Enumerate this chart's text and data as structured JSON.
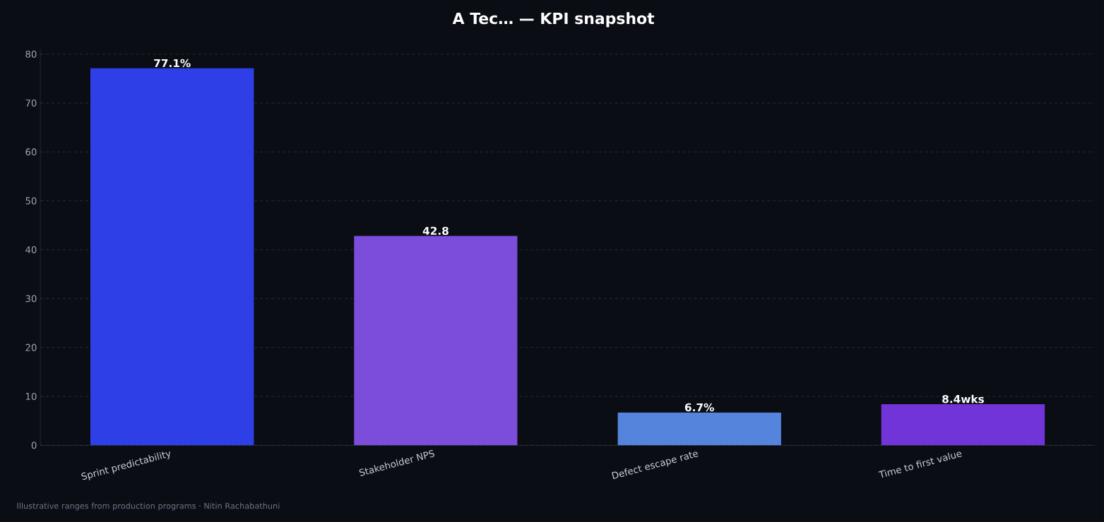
{
  "chart_data": {
    "type": "bar",
    "title": "A Tec… — KPI snapshot",
    "categories": [
      "Sprint predictability",
      "Stakeholder NPS",
      "Defect escape rate",
      "Time to first value"
    ],
    "values": [
      77.1,
      42.8,
      6.7,
      8.4
    ],
    "colors": [
      "#2e3fe8",
      "#7c4cdb",
      "#5584dd",
      "#7134d8"
    ],
    "value_labels": [
      "77.1%",
      "42.8",
      "6.7%",
      "8.4wks"
    ],
    "ylim": [
      0,
      81
    ],
    "yticks": [
      0,
      10,
      20,
      30,
      40,
      50,
      60,
      70,
      80
    ],
    "grid": "y",
    "annotations": [
      "Illustrative ranges from production programs · Nitin Rachabathuni"
    ]
  }
}
